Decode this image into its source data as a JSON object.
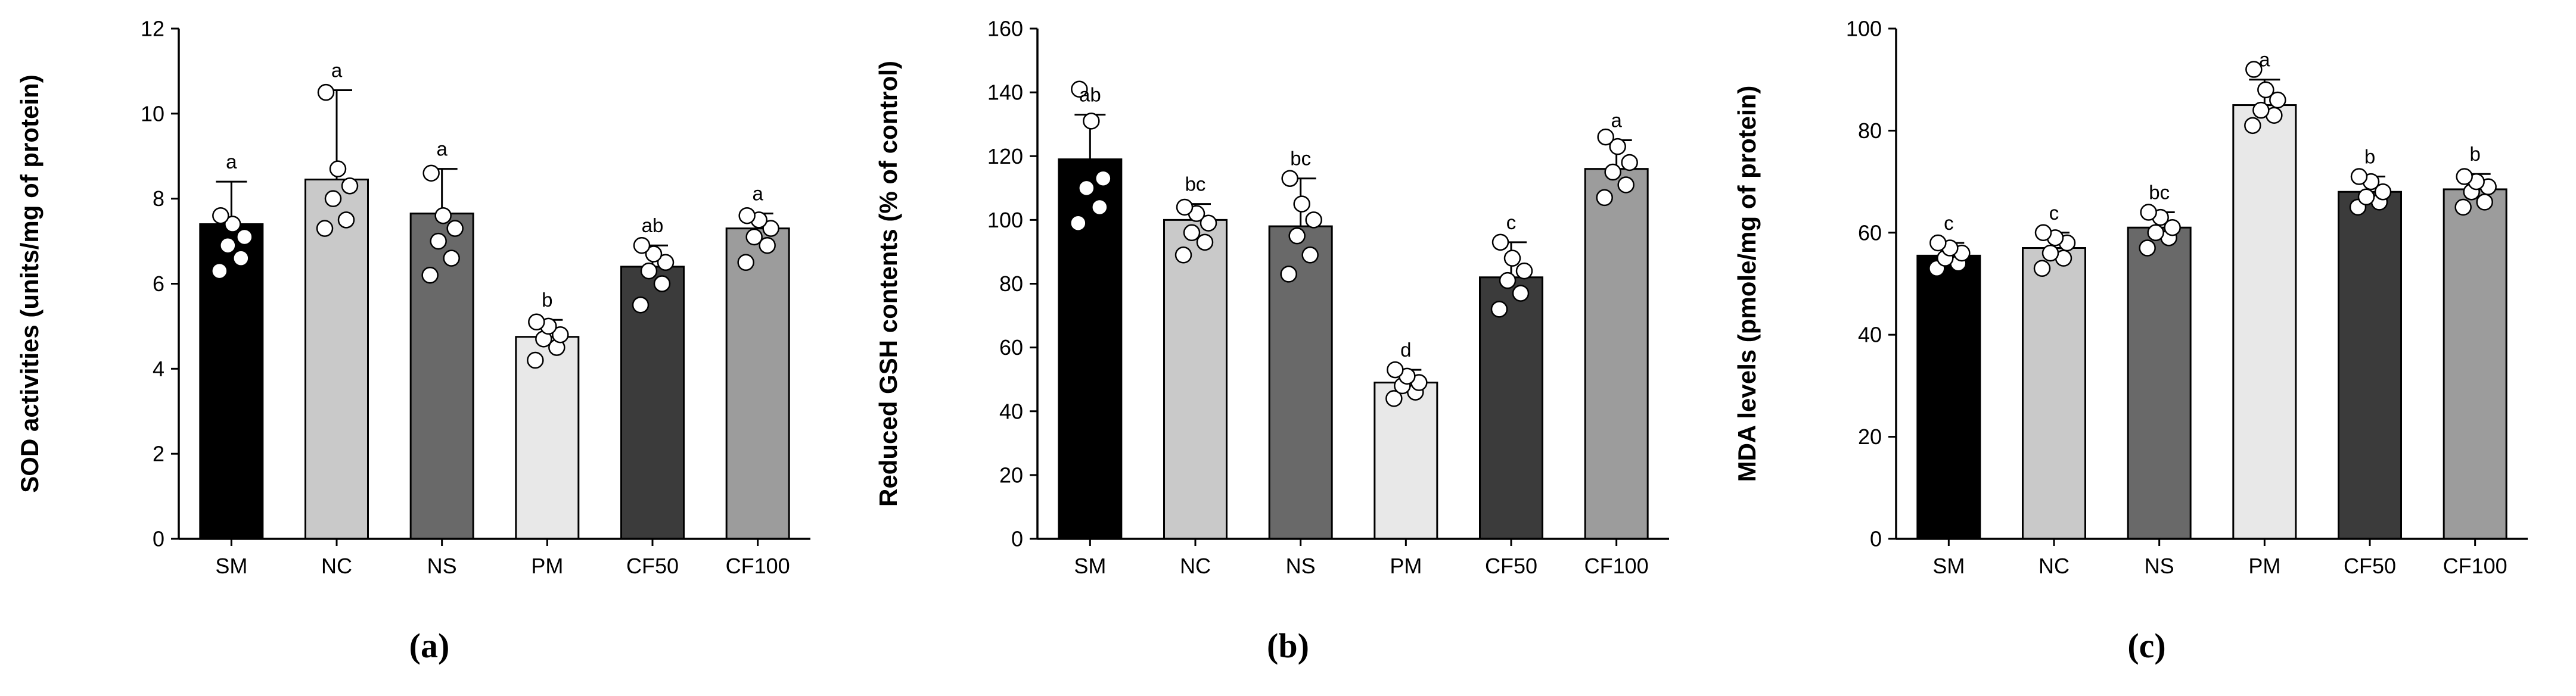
{
  "figure": {
    "background": "#ffffff",
    "axis_color": "#000000",
    "point_fill": "#ffffff",
    "point_stroke": "#000000"
  },
  "chart_data": [
    {
      "type": "bar",
      "panel": "a",
      "caption": "(a)",
      "title": "",
      "xlabel": "",
      "ylabel": "SOD activities (units/mg of protein)",
      "ylim": [
        0,
        12
      ],
      "ytick_step": 2,
      "grid": false,
      "legend": "none",
      "categories": [
        "SM",
        "NC",
        "NS",
        "PM",
        "CF50",
        "CF100"
      ],
      "values": [
        7.4,
        8.45,
        7.65,
        4.75,
        6.4,
        7.3
      ],
      "errors_up": [
        1.0,
        2.1,
        1.05,
        0.4,
        0.5,
        0.35
      ],
      "sig_letters": [
        "a",
        "a",
        "a",
        "b",
        "ab",
        "a"
      ],
      "bar_colors": [
        "#000000",
        "#c9c9c9",
        "#696969",
        "#e8e8e8",
        "#3b3b3b",
        "#9c9c9c"
      ],
      "points": [
        [
          6.3,
          6.6,
          6.9,
          7.1,
          7.4,
          7.6
        ],
        [
          7.3,
          7.5,
          8.0,
          8.3,
          8.7,
          10.5
        ],
        [
          6.2,
          6.6,
          7.0,
          7.3,
          7.6,
          8.6
        ],
        [
          4.2,
          4.5,
          4.7,
          4.8,
          5.0,
          5.1
        ],
        [
          5.5,
          6.0,
          6.3,
          6.5,
          6.7,
          6.9
        ],
        [
          6.5,
          6.9,
          7.1,
          7.3,
          7.5,
          7.6
        ]
      ]
    },
    {
      "type": "bar",
      "panel": "b",
      "caption": "(b)",
      "title": "",
      "xlabel": "",
      "ylabel": "Reduced GSH contents (% of control)",
      "ylim": [
        0,
        160
      ],
      "ytick_step": 20,
      "grid": false,
      "legend": "none",
      "categories": [
        "SM",
        "NC",
        "NS",
        "PM",
        "CF50",
        "CF100"
      ],
      "values": [
        119,
        100,
        98,
        49,
        82,
        116
      ],
      "errors_up": [
        14,
        5,
        15,
        4,
        11,
        9
      ],
      "sig_letters": [
        "ab",
        "bc",
        "bc",
        "d",
        "c",
        "a"
      ],
      "bar_colors": [
        "#000000",
        "#c9c9c9",
        "#696969",
        "#e8e8e8",
        "#3b3b3b",
        "#9c9c9c"
      ],
      "points": [
        [
          99,
          104,
          110,
          113,
          131,
          141
        ],
        [
          89,
          93,
          96,
          99,
          102,
          104
        ],
        [
          83,
          89,
          95,
          100,
          105,
          113
        ],
        [
          44,
          46,
          48,
          49,
          51,
          53
        ],
        [
          72,
          77,
          81,
          84,
          88,
          93
        ],
        [
          107,
          111,
          115,
          118,
          123,
          126
        ]
      ]
    },
    {
      "type": "bar",
      "panel": "c",
      "caption": "(c)",
      "title": "",
      "xlabel": "",
      "ylabel": "MDA levels (pmole/mg of protein)",
      "ylim": [
        0,
        100
      ],
      "ytick_step": 20,
      "grid": false,
      "legend": "none",
      "categories": [
        "SM",
        "NC",
        "NS",
        "PM",
        "CF50",
        "CF100"
      ],
      "values": [
        55.5,
        57,
        61,
        85,
        68,
        68.5
      ],
      "errors_up": [
        2.5,
        3,
        3,
        5,
        3,
        3
      ],
      "sig_letters": [
        "c",
        "c",
        "bc",
        "a",
        "b",
        "b"
      ],
      "bar_colors": [
        "#000000",
        "#c9c9c9",
        "#696969",
        "#e8e8e8",
        "#3b3b3b",
        "#9c9c9c"
      ],
      "points": [
        [
          53,
          54,
          55,
          56,
          57,
          58
        ],
        [
          53,
          55,
          56,
          58,
          59,
          60
        ],
        [
          57,
          59,
          60,
          61,
          63,
          64
        ],
        [
          81,
          83,
          84,
          86,
          88,
          92
        ],
        [
          65,
          66,
          67,
          68,
          70,
          71
        ],
        [
          65,
          66,
          68,
          69,
          70,
          71
        ]
      ]
    }
  ]
}
